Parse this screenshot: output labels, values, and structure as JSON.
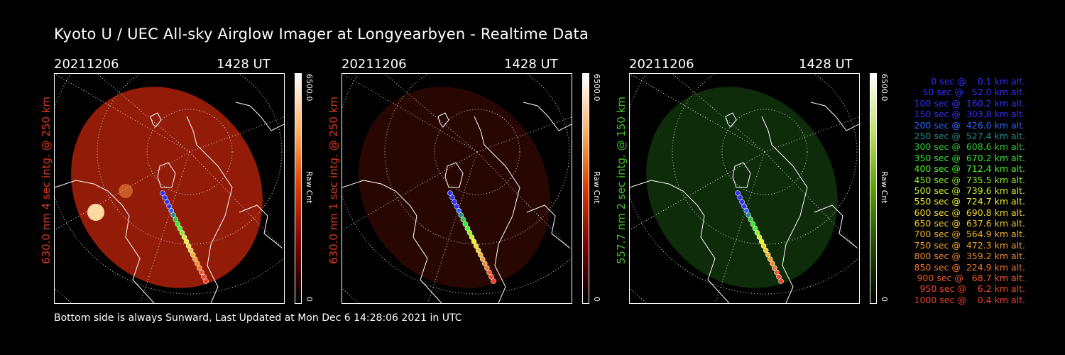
{
  "title": "Kyoto U / UEC All-sky Airglow Imager at Longyearbyen - Realtime Data",
  "footer": "Bottom side is always Sunward, Last Updated at Mon Dec  6 14:28:06 2021 in UTC",
  "colors": {
    "background": "#000000",
    "red_channel": "#d63a1e",
    "green_channel": "#3ec41e"
  },
  "panels": [
    {
      "date": "20211206",
      "time": "1428 UT",
      "ylabel": "630.0 nm 4 sec intg. @ 250 km",
      "cbar_max": "6500.0",
      "cbar_min": "0",
      "cbar_unit": "Raw Cnt",
      "label_color": "#d63a1e",
      "map_color": "#9a1e08",
      "cbar_colors": [
        "#000000",
        "#7a0000",
        "#d93a00",
        "#ffb060",
        "#ffffff"
      ]
    },
    {
      "date": "20211206",
      "time": "1428 UT",
      "ylabel": "630.0 nm 1 sec intg. @ 250 km",
      "cbar_max": "6500.0",
      "cbar_min": "0",
      "cbar_unit": "Raw Cnt",
      "label_color": "#d63a1e",
      "map_color": "#2a0703",
      "cbar_colors": [
        "#000000",
        "#7a0000",
        "#d93a00",
        "#ffb060",
        "#ffffff"
      ]
    },
    {
      "date": "20211206",
      "time": "1428 UT",
      "ylabel": "557.7 nm 2 sec intg. @ 150 km",
      "cbar_max": "6500.0",
      "cbar_min": "0",
      "cbar_unit": "Raw Cnt",
      "label_color": "#3ec41e",
      "map_color": "#0f2e0a",
      "cbar_colors": [
        "#000000",
        "#1e4a00",
        "#5aa000",
        "#c0e060",
        "#ffffff"
      ]
    }
  ],
  "legend": [
    {
      "text": "0 sec @    0.1 km alt.",
      "color": "#3030ff"
    },
    {
      "text": "50 sec @   52.0 km alt.",
      "color": "#3030ff"
    },
    {
      "text": "100 sec @  160.2 km alt.",
      "color": "#3030ff"
    },
    {
      "text": "150 sec @  303.8 km alt.",
      "color": "#3030ff"
    },
    {
      "text": "200 sec @  426.0 km alt.",
      "color": "#2c64ff"
    },
    {
      "text": "250 sec @  527.4 km alt.",
      "color": "#1e8c8c"
    },
    {
      "text": "300 sec @  608.6 km alt.",
      "color": "#32c832"
    },
    {
      "text": "350 sec @  670.2 km alt.",
      "color": "#32e632"
    },
    {
      "text": "400 sec @  712.4 km alt.",
      "color": "#50f028"
    },
    {
      "text": "450 sec @  735.5 km alt.",
      "color": "#8cf028"
    },
    {
      "text": "500 sec @  739.6 km alt.",
      "color": "#c8f028"
    },
    {
      "text": "550 sec @  724.7 km alt.",
      "color": "#f0f028"
    },
    {
      "text": "600 sec @  690.8 km alt.",
      "color": "#f0dc28"
    },
    {
      "text": "650 sec @  637.6 km alt.",
      "color": "#f0c828"
    },
    {
      "text": "700 sec @  564.9 km alt.",
      "color": "#f0b428"
    },
    {
      "text": "750 sec @  472.3 km alt.",
      "color": "#f0a028"
    },
    {
      "text": "800 sec @  359.2 km alt.",
      "color": "#f08c28"
    },
    {
      "text": "850 sec @  224.9 km alt.",
      "color": "#f07828"
    },
    {
      "text": "900 sec @   68.7 km alt.",
      "color": "#f05a28"
    },
    {
      "text": "950 sec @    6.2 km alt.",
      "color": "#f04628"
    },
    {
      "text": "1000 sec @    0.4 km alt.",
      "color": "#f03c28"
    }
  ]
}
